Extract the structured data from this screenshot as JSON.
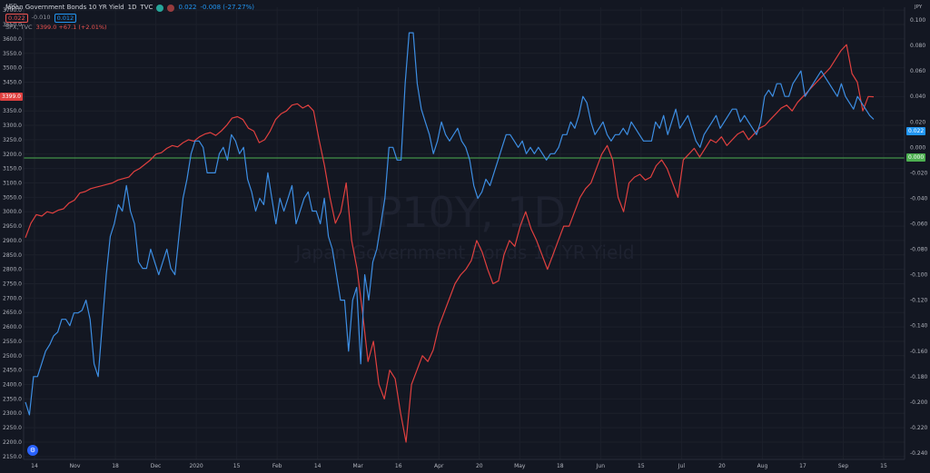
{
  "legend": {
    "title": "Japan Government Bonds 10 YR Yield",
    "interval": "1D",
    "exchange": "TVC",
    "value": "0.022",
    "change": "-0.008 (-27.27%)",
    "box_red": "0.022",
    "box_mid": "-0.010",
    "box_blue": "0.012",
    "spx_symbol": "SPX, TVC",
    "spx_values": "3399.0 +67.1 (+2.01%)"
  },
  "axis_labels": {
    "left_unit": "USD",
    "right_unit": "JPY",
    "spx_flag": "3399.0",
    "jgb_flag": "0.022",
    "zero_flag": "0.000",
    "bottom_left": "⚙"
  },
  "watermark": {
    "symbol": "JP10Y, 1D",
    "name": "Japan Government Bonds 10 YR Yield"
  },
  "colors": {
    "background": "#131722",
    "jgb_line": "#3d8ee3",
    "spx_line": "#e0403f",
    "zero_line": "#4caf50",
    "grid": "#222632"
  },
  "chart_data": {
    "type": "line",
    "left_axis": {
      "label": "USD",
      "min": 2140,
      "max": 3710,
      "ticks": [
        2150,
        2200,
        2250,
        2300,
        2350,
        2400,
        2450,
        2500,
        2550,
        2600,
        2650,
        2700,
        2750,
        2800,
        2850,
        2900,
        2950,
        3000,
        3050,
        3100,
        3150,
        3200,
        3250,
        3300,
        3350,
        3400,
        3450,
        3500,
        3550,
        3600,
        3650,
        3700
      ]
    },
    "right_axis": {
      "label": "JPY",
      "min": -0.245,
      "max": 0.11,
      "ticks": [
        "0.100",
        "0.080",
        "0.060",
        "0.040",
        "0.020",
        "0.000",
        "-0.020",
        "-0.040",
        "-0.060",
        "-0.080",
        "-0.100",
        "-0.120",
        "-0.140",
        "-0.160",
        "-0.180",
        "-0.200",
        "-0.220",
        "-0.240"
      ]
    },
    "x_ticks": [
      "14",
      "Nov",
      "18",
      "Dec",
      "2020",
      "15",
      "Feb",
      "14",
      "Mar",
      "16",
      "Apr",
      "20",
      "May",
      "18",
      "Jun",
      "15",
      "Jul",
      "20",
      "Aug",
      "17",
      "Sep",
      "15"
    ],
    "series": [
      {
        "name": "SPX, TVC",
        "axis": "left",
        "color": "#e0403f",
        "values": [
          2910,
          2960,
          2990,
          2985,
          3000,
          2995,
          3005,
          3010,
          3030,
          3040,
          3065,
          3070,
          3080,
          3085,
          3090,
          3095,
          3100,
          3110,
          3115,
          3120,
          3140,
          3150,
          3165,
          3180,
          3200,
          3205,
          3220,
          3230,
          3225,
          3240,
          3250,
          3245,
          3260,
          3270,
          3275,
          3265,
          3280,
          3300,
          3325,
          3330,
          3320,
          3290,
          3280,
          3240,
          3250,
          3280,
          3320,
          3340,
          3350,
          3370,
          3375,
          3360,
          3370,
          3350,
          3250,
          3160,
          3050,
          2960,
          3000,
          3100,
          2900,
          2800,
          2650,
          2480,
          2550,
          2400,
          2350,
          2450,
          2420,
          2300,
          2200,
          2400,
          2450,
          2500,
          2480,
          2520,
          2600,
          2650,
          2700,
          2750,
          2780,
          2800,
          2830,
          2900,
          2860,
          2800,
          2750,
          2760,
          2850,
          2900,
          2880,
          2950,
          3000,
          2940,
          2900,
          2850,
          2800,
          2850,
          2900,
          2950,
          2950,
          3000,
          3050,
          3080,
          3100,
          3150,
          3200,
          3230,
          3180,
          3050,
          3000,
          3100,
          3120,
          3130,
          3110,
          3120,
          3160,
          3180,
          3150,
          3100,
          3050,
          3180,
          3200,
          3220,
          3190,
          3220,
          3250,
          3240,
          3260,
          3230,
          3250,
          3270,
          3280,
          3250,
          3270,
          3290,
          3300,
          3320,
          3340,
          3360,
          3370,
          3350,
          3380,
          3400,
          3420,
          3440,
          3460,
          3480,
          3500,
          3530,
          3560,
          3580,
          3480,
          3450,
          3350,
          3400,
          3399
        ]
      },
      {
        "name": "Japan Government Bonds 10 YR Yield",
        "axis": "right",
        "color": "#3d8ee3",
        "values": [
          -0.2,
          -0.21,
          -0.18,
          -0.18,
          -0.17,
          -0.16,
          -0.155,
          -0.148,
          -0.145,
          -0.135,
          -0.135,
          -0.14,
          -0.13,
          -0.13,
          -0.128,
          -0.12,
          -0.135,
          -0.17,
          -0.18,
          -0.14,
          -0.1,
          -0.07,
          -0.06,
          -0.045,
          -0.05,
          -0.03,
          -0.05,
          -0.06,
          -0.09,
          -0.095,
          -0.095,
          -0.08,
          -0.09,
          -0.1,
          -0.09,
          -0.08,
          -0.095,
          -0.1,
          -0.07,
          -0.04,
          -0.025,
          -0.005,
          0.005,
          0.005,
          0.0,
          -0.02,
          -0.02,
          -0.02,
          -0.005,
          0.0,
          -0.01,
          0.01,
          0.005,
          -0.005,
          0.0,
          -0.025,
          -0.035,
          -0.05,
          -0.04,
          -0.045,
          -0.02,
          -0.04,
          -0.06,
          -0.04,
          -0.05,
          -0.04,
          -0.03,
          -0.06,
          -0.05,
          -0.04,
          -0.035,
          -0.05,
          -0.05,
          -0.06,
          -0.04,
          -0.07,
          -0.08,
          -0.1,
          -0.12,
          -0.12,
          -0.16,
          -0.12,
          -0.11,
          -0.17,
          -0.1,
          -0.12,
          -0.09,
          -0.08,
          -0.06,
          -0.04,
          0.0,
          0.0,
          -0.01,
          -0.01,
          0.05,
          0.09,
          0.09,
          0.05,
          0.03,
          0.02,
          0.01,
          -0.005,
          0.005,
          0.02,
          0.01,
          0.005,
          0.01,
          0.015,
          0.005,
          0.0,
          -0.01,
          -0.03,
          -0.04,
          -0.035,
          -0.025,
          -0.03,
          -0.02,
          -0.01,
          0.0,
          0.01,
          0.01,
          0.005,
          0.0,
          0.005,
          -0.005,
          0.0,
          -0.005,
          0.0,
          -0.005,
          -0.01,
          -0.005,
          -0.005,
          0.0,
          0.01,
          0.01,
          0.02,
          0.015,
          0.025,
          0.04,
          0.035,
          0.02,
          0.01,
          0.015,
          0.02,
          0.01,
          0.005,
          0.01,
          0.01,
          0.015,
          0.01,
          0.02,
          0.015,
          0.01,
          0.005,
          0.005,
          0.005,
          0.02,
          0.015,
          0.025,
          0.01,
          0.02,
          0.03,
          0.015,
          0.02,
          0.025,
          0.015,
          0.005,
          0.0,
          0.01,
          0.015,
          0.02,
          0.025,
          0.015,
          0.02,
          0.025,
          0.03,
          0.03,
          0.02,
          0.025,
          0.02,
          0.015,
          0.01,
          0.02,
          0.04,
          0.045,
          0.04,
          0.05,
          0.05,
          0.04,
          0.04,
          0.05,
          0.055,
          0.06,
          0.04,
          0.045,
          0.05,
          0.055,
          0.06,
          0.055,
          0.05,
          0.045,
          0.04,
          0.05,
          0.04,
          0.035,
          0.03,
          0.04,
          0.035,
          0.03,
          0.025,
          0.022
        ]
      }
    ],
    "zero_line": 0.0
  }
}
